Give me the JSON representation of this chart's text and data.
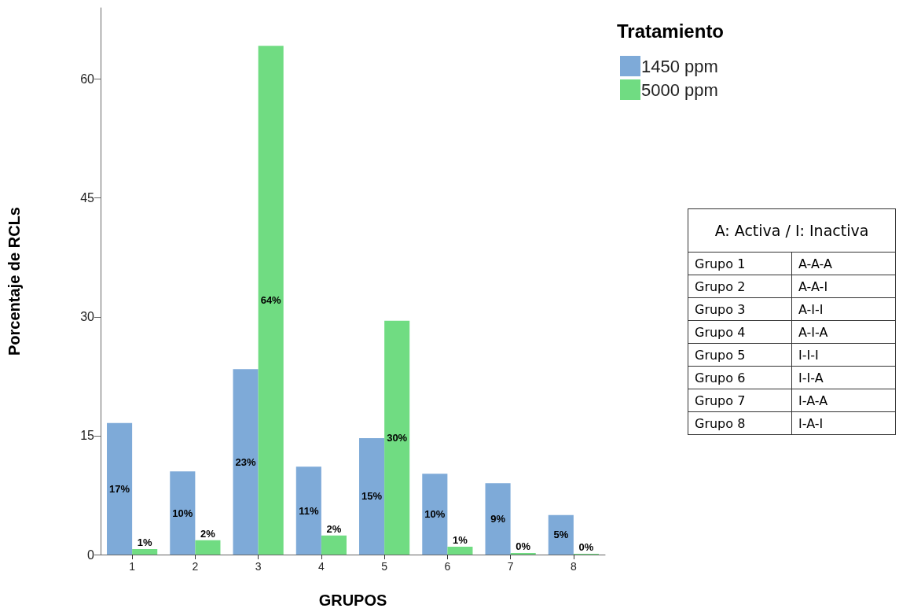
{
  "chart_data": {
    "type": "bar",
    "xlabel": "GRUPOS",
    "ylabel": "Porcentaje de RCLs",
    "legend_title": "Tratamiento",
    "legend": "top right",
    "grid": false,
    "categories": [
      "1",
      "2",
      "3",
      "4",
      "5",
      "6",
      "7",
      "8"
    ],
    "series": [
      {
        "name": "1450 ppm",
        "color": "#7eaad8",
        "values": [
          16.6,
          10.5,
          23.4,
          11.1,
          14.7,
          10.2,
          9.0,
          5.0
        ],
        "value_labels": [
          "17%",
          "10%",
          "23%",
          "11%",
          "15%",
          "10%",
          "9%",
          "5%"
        ]
      },
      {
        "name": "5000 ppm",
        "color": "#70dc82",
        "values": [
          0.7,
          1.8,
          64.2,
          2.4,
          29.5,
          1.0,
          0.2,
          0.1
        ],
        "value_labels": [
          "1%",
          "2%",
          "64%",
          "2%",
          "30%",
          "1%",
          "0%",
          "0%"
        ]
      }
    ],
    "ylim": [
      0,
      69
    ],
    "yticks": [
      0,
      15,
      30,
      45,
      60
    ],
    "annotations": [
      "A: Activa / I: Inactiva",
      "Grupo 1",
      "A-A-A",
      "Grupo 2",
      "A-A-I",
      "Grupo 3",
      "A-I-I",
      "Grupo 4",
      "A-I-A",
      "Grupo 5",
      "I-I-I",
      "Grupo 6",
      "I-I-A",
      "Grupo 7",
      "I-A-A",
      "Grupo 8",
      "I-A-I"
    ]
  }
}
